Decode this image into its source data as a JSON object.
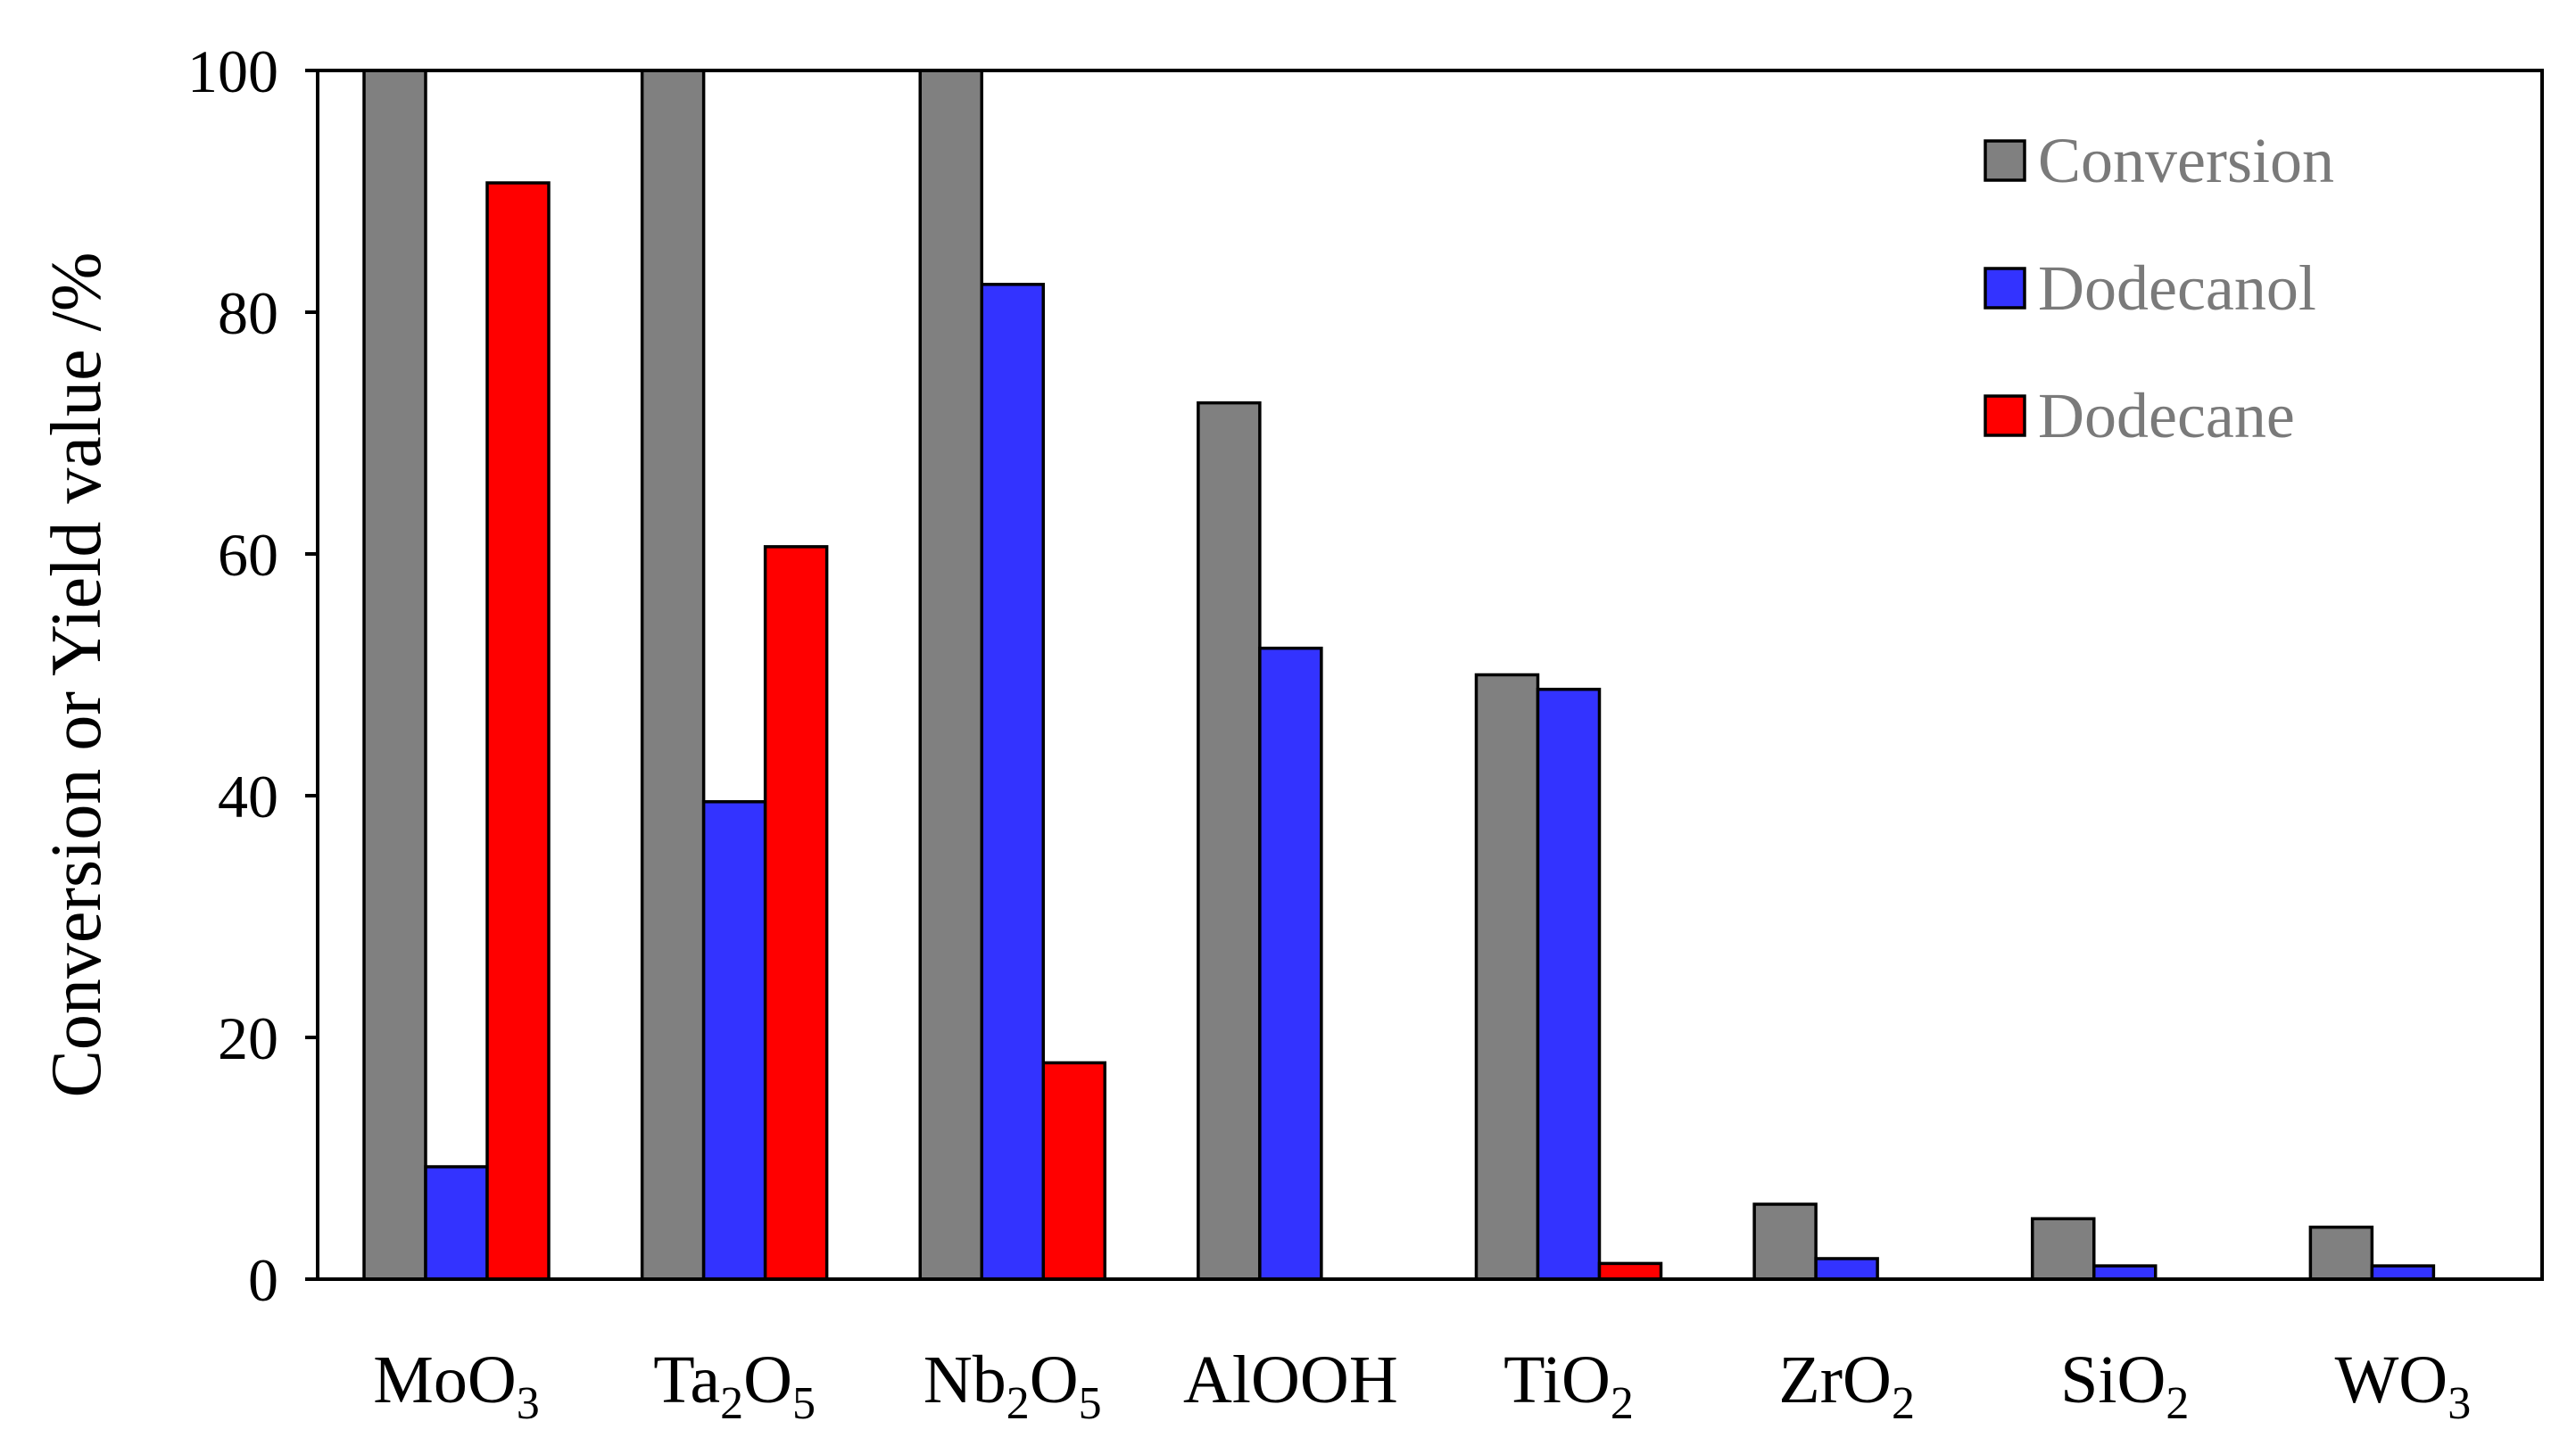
{
  "chart_data": {
    "type": "bar",
    "title": "",
    "xlabel": "",
    "ylabel": "Conversion or Yield value /%",
    "ylim": [
      0,
      100
    ],
    "yticks": [
      0,
      20,
      40,
      60,
      80,
      100
    ],
    "grid": false,
    "legend_position": "top-right",
    "categories": [
      {
        "base": "MoO",
        "sub": "3",
        "after": ""
      },
      {
        "base": "Ta",
        "sub": "2",
        "after": "O",
        "sub2": "5"
      },
      {
        "base": "Nb",
        "sub": "2",
        "after": "O",
        "sub2": "5"
      },
      {
        "base": "AlOOH",
        "sub": "",
        "after": ""
      },
      {
        "base": "TiO",
        "sub": "2",
        "after": ""
      },
      {
        "base": "ZrO",
        "sub": "2",
        "after": ""
      },
      {
        "base": "SiO",
        "sub": "2",
        "after": ""
      },
      {
        "base": "WO",
        "sub": "3",
        "after": ""
      }
    ],
    "series": [
      {
        "name": "Conversion",
        "color": "#808080",
        "values": [
          100,
          100,
          100,
          72.5,
          50,
          6.2,
          5,
          4.3
        ]
      },
      {
        "name": "Dodecanol",
        "color": "#3333ff",
        "values": [
          9.3,
          39.5,
          82.3,
          52.2,
          48.8,
          1.7,
          1.1,
          1.1
        ]
      },
      {
        "name": "Dodecane",
        "color": "#ff0000",
        "values": [
          90.7,
          60.6,
          17.9,
          0,
          1.3,
          0,
          0,
          0
        ]
      }
    ]
  }
}
